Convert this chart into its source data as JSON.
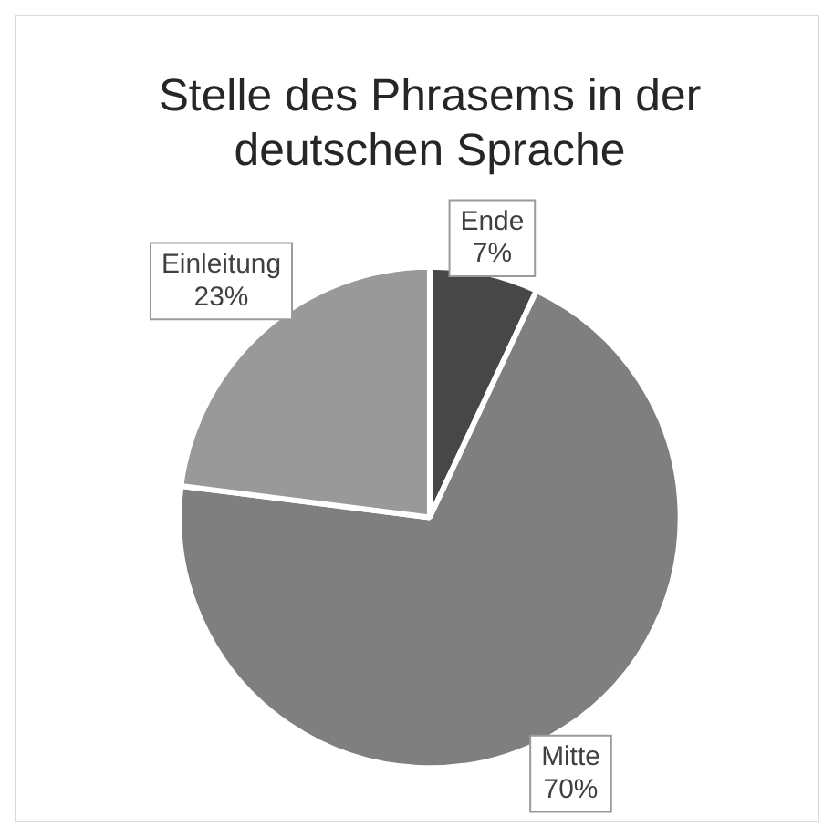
{
  "chart_data": {
    "type": "pie",
    "title": "Stelle des Phrasems in der deutschen Sprache",
    "categories": [
      "Ende",
      "Mitte",
      "Einleitung"
    ],
    "values": [
      7,
      70,
      23
    ],
    "value_labels": [
      "7%",
      "70%",
      "23%"
    ],
    "colors": [
      "#474747",
      "#7f7f7f",
      "#999999"
    ],
    "legend": false
  }
}
